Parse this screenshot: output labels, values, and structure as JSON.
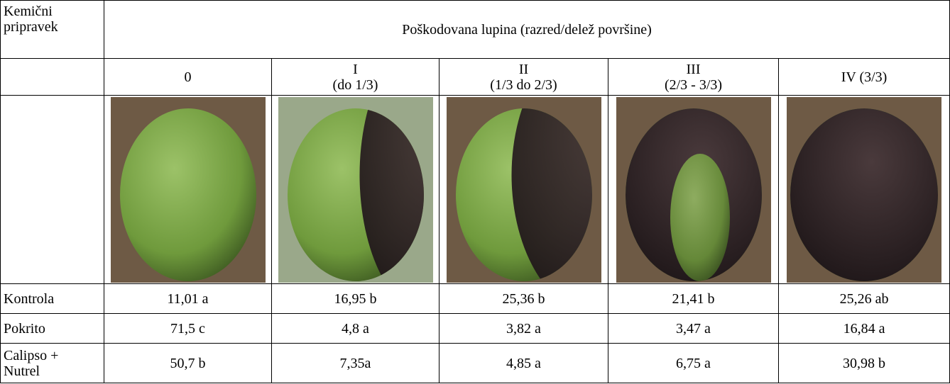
{
  "header": {
    "first_column": [
      "Kemični",
      "pripravek"
    ],
    "title": "Poškodovana lupina (razred/delež površine)"
  },
  "classes": [
    [
      "0"
    ],
    [
      "I",
      "(do 1/3)"
    ],
    [
      "II",
      "(1/3 do 2/3)"
    ],
    [
      "III",
      "(2/3 - 3/3)"
    ],
    [
      "IV (3/3)"
    ]
  ],
  "rows": [
    {
      "label": [
        "Kontrola"
      ],
      "values": [
        "11,01 a",
        "16,95 b",
        "25,36 b",
        "21,41 b",
        "25,26 ab"
      ]
    },
    {
      "label": [
        "Pokrito"
      ],
      "values": [
        "71,5 c",
        "4,8 a",
        "3,82 a",
        "3,47 a",
        "16,84 a"
      ]
    },
    {
      "label": [
        "Calipso +",
        "Nutrel"
      ],
      "values": [
        "50,7 b",
        "7,35a",
        "4,85 a",
        "6,75 a",
        "30,98 b"
      ]
    }
  ]
}
